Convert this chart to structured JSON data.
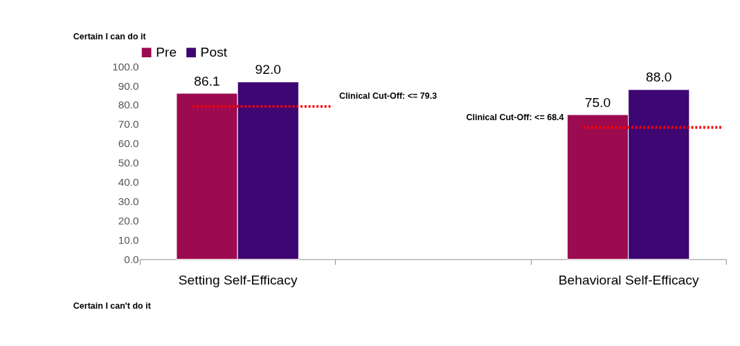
{
  "chart_data": {
    "type": "bar",
    "ylabel": "Certain I can do it",
    "categories": [
      "Setting Self-Efficacy",
      null,
      "Behavioral Self-Efficacy"
    ],
    "series": [
      {
        "name": "Pre",
        "color": "#9c0a4f",
        "values": [
          86.1,
          null,
          75.0
        ],
        "value_labels": [
          "86.1",
          null,
          "75.0"
        ]
      },
      {
        "name": "Post",
        "color": "#3e0672",
        "values": [
          92.0,
          null,
          88.0
        ],
        "value_labels": [
          "92.0",
          null,
          "88.0"
        ]
      }
    ],
    "ylim": [
      0,
      100
    ],
    "yticks": [
      {
        "value": 0,
        "label": "0.0"
      },
      {
        "value": 10,
        "label": "10.0"
      },
      {
        "value": 20,
        "label": "20.0"
      },
      {
        "value": 30,
        "label": "30.0"
      },
      {
        "value": 40,
        "label": "40.0"
      },
      {
        "value": 50,
        "label": "50.0"
      },
      {
        "value": 60,
        "label": "60.0"
      },
      {
        "value": 70,
        "label": "70.0"
      },
      {
        "value": 80,
        "label": "80.0"
      },
      {
        "value": 90,
        "label": "90.0"
      },
      {
        "value": 100,
        "label": "100.0"
      }
    ],
    "ref_lines": [
      {
        "axis": "y",
        "value": 79.3,
        "label": "Clinical Cut-Off: <= 79.3",
        "color": "#ff0000",
        "line_style": "dotted"
      },
      {
        "axis": "y",
        "value": 68.4,
        "label": "Clinical Cut-Off: <= 68.4",
        "color": "#ff0000",
        "line_style": "dotted"
      }
    ],
    "annotations": [
      "Certain I can't do it"
    ],
    "grid": false,
    "legend": "top"
  }
}
